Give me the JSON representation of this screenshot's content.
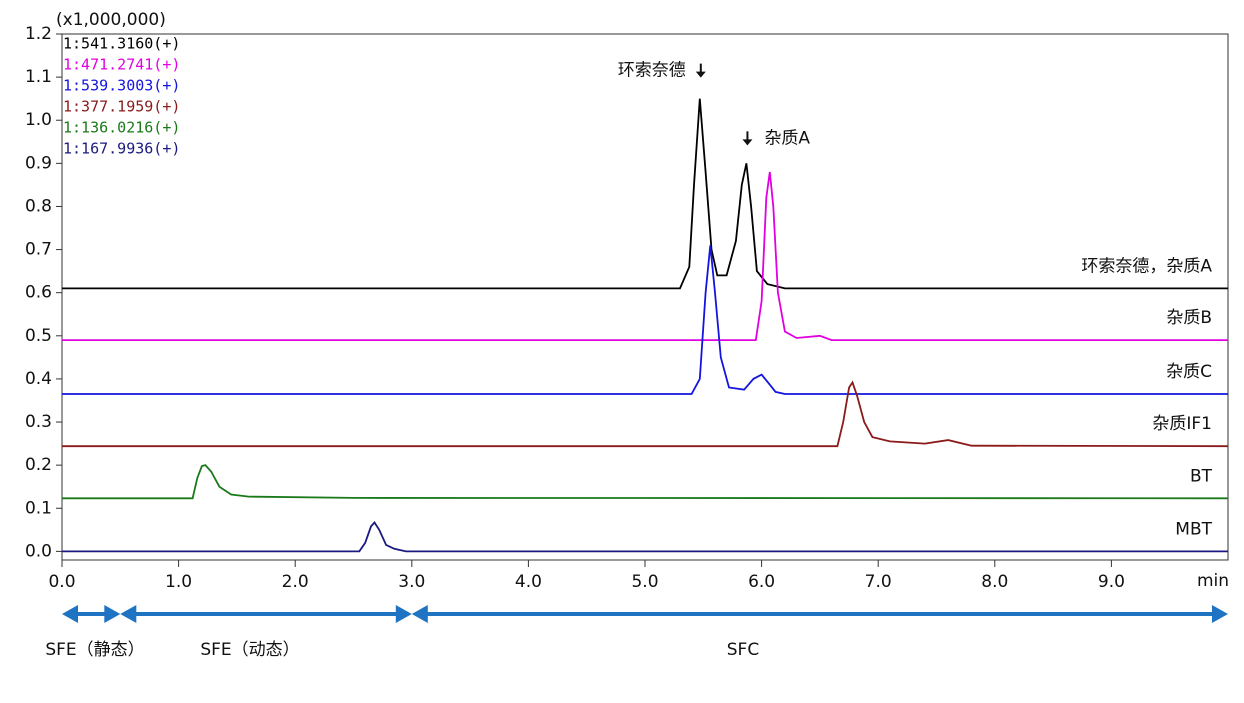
{
  "chart_data": {
    "type": "line",
    "y_unit": "(x1,000,000)",
    "x_unit": "min",
    "xlim": [
      0,
      10.0
    ],
    "ylim": [
      -0.02,
      1.2
    ],
    "xticks": [
      {
        "value": 0,
        "label": "0.0"
      },
      {
        "value": 1,
        "label": "1.0"
      },
      {
        "value": 2,
        "label": "2.0"
      },
      {
        "value": 3,
        "label": "3.0"
      },
      {
        "value": 4,
        "label": "4.0"
      },
      {
        "value": 5,
        "label": "5.0"
      },
      {
        "value": 6,
        "label": "6.0"
      },
      {
        "value": 7,
        "label": "7.0"
      },
      {
        "value": 8,
        "label": "8.0"
      },
      {
        "value": 9,
        "label": "9.0"
      }
    ],
    "yticks": [
      {
        "value": 0,
        "label": "0.0"
      },
      0.1,
      0.2,
      0.3,
      0.4,
      0.5,
      0.6,
      0.7,
      0.8,
      0.9,
      {
        "value": 1,
        "label": "1.0"
      },
      1.1,
      1.2
    ],
    "grid": false,
    "legend": "top-left",
    "series": [
      {
        "name": "1:541.3160(+)",
        "label": "环索奈德，杂质A",
        "color": "#000000",
        "x": [
          0,
          5.3,
          5.38,
          5.42,
          5.47,
          5.52,
          5.57,
          5.62,
          5.7,
          5.78,
          5.83,
          5.87,
          5.91,
          5.96,
          6.05,
          6.2,
          10
        ],
        "values": [
          0.61,
          0.61,
          0.66,
          0.85,
          1.05,
          0.88,
          0.7,
          0.64,
          0.64,
          0.72,
          0.85,
          0.9,
          0.8,
          0.65,
          0.62,
          0.61,
          0.61
        ]
      },
      {
        "name": "1:471.2741(+)",
        "label": "杂质B",
        "color": "#e000e0",
        "x": [
          0,
          5.95,
          6.0,
          6.04,
          6.07,
          6.1,
          6.14,
          6.2,
          6.3,
          6.5,
          6.6,
          10
        ],
        "values": [
          0.49,
          0.49,
          0.58,
          0.82,
          0.88,
          0.8,
          0.6,
          0.51,
          0.495,
          0.5,
          0.49,
          0.49
        ]
      },
      {
        "name": "1:539.3003(+)",
        "label": "杂质C",
        "color": "#1414e0",
        "x": [
          0,
          5.4,
          5.47,
          5.52,
          5.56,
          5.6,
          5.65,
          5.72,
          5.85,
          5.93,
          6.0,
          6.06,
          6.12,
          6.2,
          10
        ],
        "values": [
          0.365,
          0.365,
          0.4,
          0.6,
          0.71,
          0.6,
          0.45,
          0.38,
          0.375,
          0.4,
          0.41,
          0.39,
          0.37,
          0.365,
          0.365
        ]
      },
      {
        "name": "1:377.1959(+)",
        "label": "杂质IF1",
        "color": "#8b1a1a",
        "x": [
          0,
          6.65,
          6.7,
          6.75,
          6.78,
          6.82,
          6.88,
          6.95,
          7.1,
          7.4,
          7.6,
          7.8,
          10
        ],
        "values": [
          0.244,
          0.244,
          0.3,
          0.38,
          0.392,
          0.36,
          0.3,
          0.265,
          0.255,
          0.25,
          0.258,
          0.245,
          0.244
        ]
      },
      {
        "name": "1:136.0216(+)",
        "label": "BT",
        "color": "#1a7a1a",
        "x": [
          0,
          1.12,
          1.16,
          1.2,
          1.23,
          1.28,
          1.35,
          1.45,
          1.6,
          2.5,
          10
        ],
        "values": [
          0.123,
          0.123,
          0.17,
          0.198,
          0.2,
          0.185,
          0.15,
          0.132,
          0.127,
          0.124,
          0.123
        ]
      },
      {
        "name": "1:167.9936(+)",
        "label": "MBT",
        "color": "#1a1a80",
        "x": [
          0,
          2.55,
          2.6,
          2.65,
          2.68,
          2.72,
          2.78,
          2.85,
          2.95,
          10
        ],
        "values": [
          0,
          0,
          0.02,
          0.058,
          0.067,
          0.05,
          0.015,
          0.006,
          0,
          0
        ]
      }
    ],
    "annotations": [
      {
        "text": "环索奈德",
        "x": 5.47,
        "y": 1.05
      },
      {
        "text": "杂质A",
        "x": 5.87,
        "y": 0.9
      }
    ],
    "stages": [
      {
        "label": "SFE（静态）",
        "start": 0,
        "end": 0.5
      },
      {
        "label": "SFE（动态）",
        "start": 0.5,
        "end": 3.0
      },
      {
        "label": "SFC",
        "start": 3.0,
        "end": 10.0
      }
    ]
  }
}
